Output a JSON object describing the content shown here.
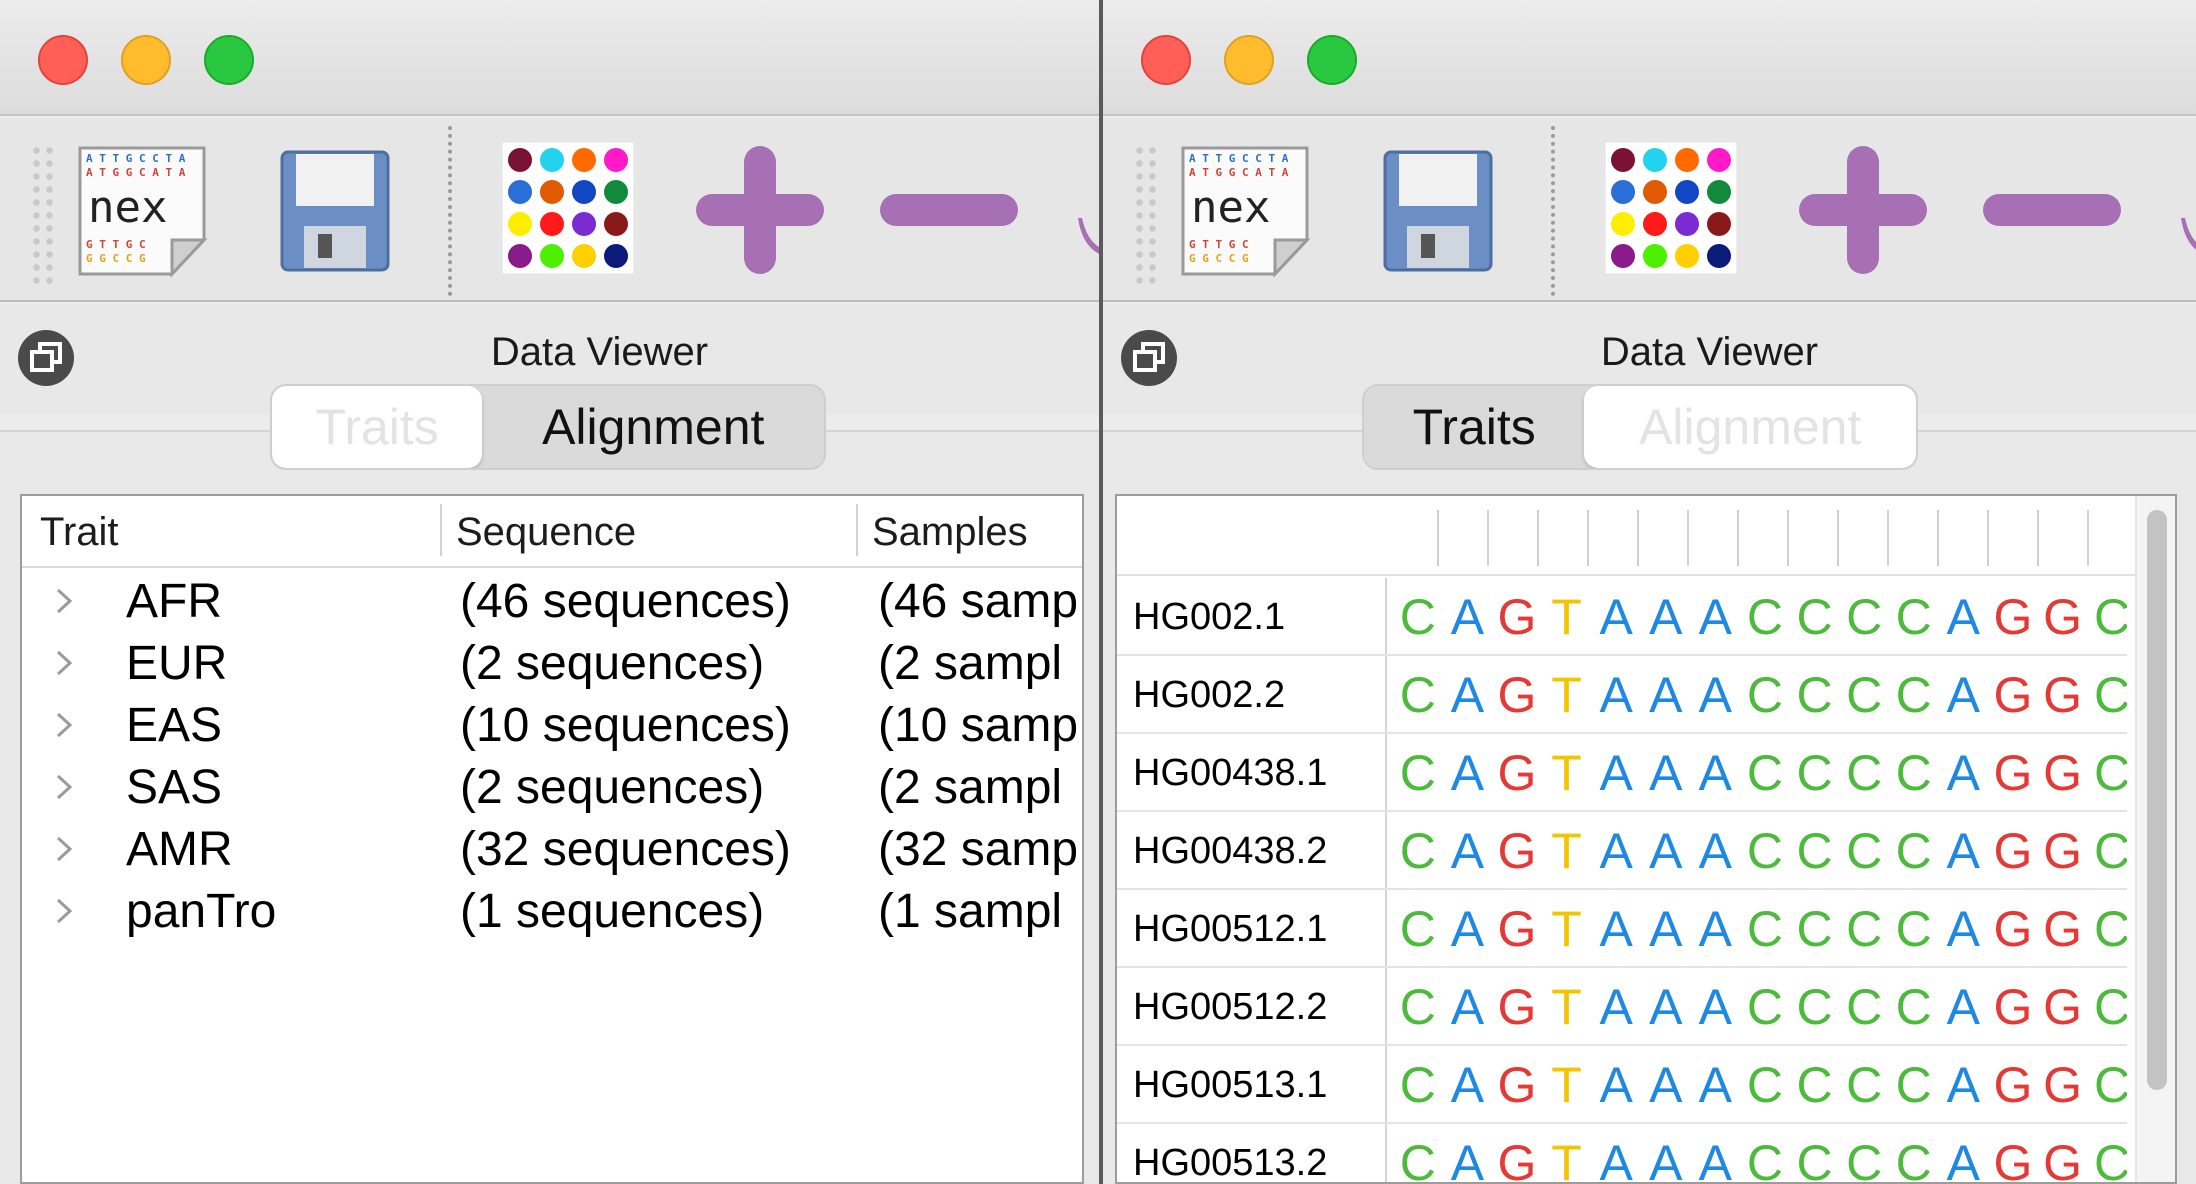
{
  "left_window": {
    "panel_title": "Data Viewer",
    "tabs": [
      {
        "label": "Traits",
        "selected": true
      },
      {
        "label": "Alignment",
        "selected": false
      }
    ],
    "table": {
      "columns": [
        "Trait",
        "Sequence",
        "Samples"
      ],
      "rows": [
        {
          "trait": "AFR",
          "sequence": "(46 sequences)",
          "samples": "(46 samp"
        },
        {
          "trait": "EUR",
          "sequence": "(2 sequences)",
          "samples": "(2 sampl"
        },
        {
          "trait": "EAS",
          "sequence": "(10 sequences)",
          "samples": "(10 samp"
        },
        {
          "trait": "SAS",
          "sequence": "(2 sequences)",
          "samples": "(2 sampl"
        },
        {
          "trait": "AMR",
          "sequence": "(32 sequences)",
          "samples": "(32 samp"
        },
        {
          "trait": "panTro",
          "sequence": "(1 sequences)",
          "samples": "(1 sampl"
        }
      ]
    }
  },
  "right_window": {
    "panel_title": "Data Viewer",
    "tabs": [
      {
        "label": "Traits",
        "selected": false
      },
      {
        "label": "Alignment",
        "selected": true
      }
    ],
    "alignment": {
      "rows": [
        {
          "name": "HG002.1",
          "seq": "CAGTAAACCCCAGGC"
        },
        {
          "name": "HG002.2",
          "seq": "CAGTAAACCCCAGGC"
        },
        {
          "name": "HG00438.1",
          "seq": "CAGTAAACCCCAGGC"
        },
        {
          "name": "HG00438.2",
          "seq": "CAGTAAACCCCAGGC"
        },
        {
          "name": "HG00512.1",
          "seq": "CAGTAAACCCCAGGC"
        },
        {
          "name": "HG00512.2",
          "seq": "CAGTAAACCCCAGGC"
        },
        {
          "name": "HG00513.1",
          "seq": "CAGTAAACCCCAGGC"
        },
        {
          "name": "HG00513.2",
          "seq": "CAGTAAACCCCAGGC"
        }
      ]
    }
  },
  "toolbar": {
    "nex_label": "nex",
    "icons": [
      "nex-file-icon",
      "save-icon",
      "color-palette-icon",
      "plus-icon",
      "minus-icon"
    ]
  },
  "colors": {
    "A": "#1e88e5",
    "C": "#4cbb3c",
    "G": "#e53935",
    "T": "#f5c400",
    "toolbar_purple": "#a770b5"
  }
}
